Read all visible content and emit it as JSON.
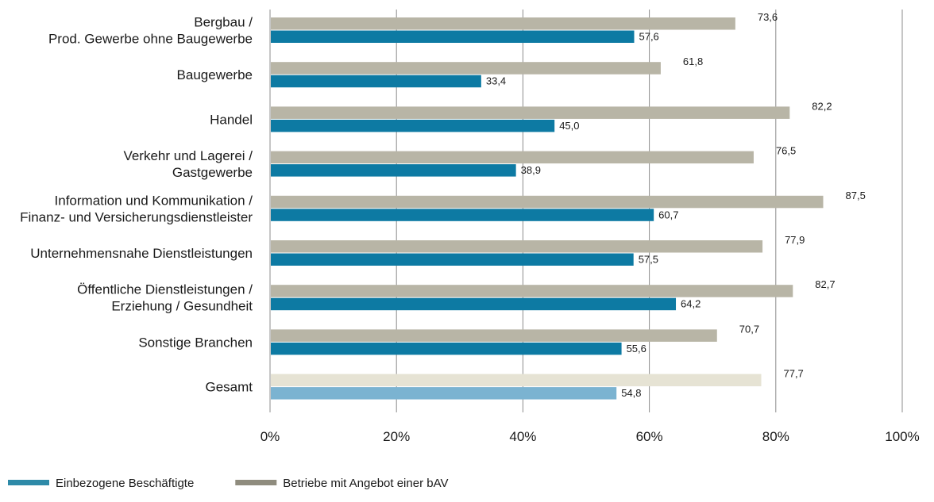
{
  "chart_data": {
    "type": "bar",
    "orientation": "horizontal",
    "categories": [
      [
        "Bergbau /",
        "Prod. Gewerbe ohne Baugewerbe"
      ],
      [
        "Baugewerbe"
      ],
      [
        "Handel"
      ],
      [
        "Verkehr und Lagerei /",
        "Gastgewerbe"
      ],
      [
        "Information und Kommunikation /",
        "Finanz- und Versicherungsdienstleister"
      ],
      [
        "Unternehmensnahe Dienstleistungen"
      ],
      [
        "Öffentliche Dienstleistungen /",
        "Erziehung / Gesundheit"
      ],
      [
        "Sonstige Branchen"
      ],
      [
        "Gesamt"
      ]
    ],
    "series": [
      {
        "name": "Betriebe mit Angebot einer bAV",
        "color": "#b8b5a6",
        "highlight_color": "#e6e3d4",
        "legend_color": "#8f8c7e",
        "values": [
          73.6,
          61.8,
          82.2,
          76.5,
          87.5,
          77.9,
          82.7,
          70.7,
          77.7
        ],
        "labels": [
          "73,6",
          "61,8",
          "82,2",
          "76,5",
          "87,5",
          "77,9",
          "82,7",
          "70,7",
          "77,7"
        ]
      },
      {
        "name": "Einbezogene Beschäftigte",
        "color": "#0d7aa3",
        "highlight_color": "#7bb3d1",
        "legend_color": "#2e8aa8",
        "values": [
          57.6,
          33.4,
          45.0,
          38.9,
          60.7,
          57.5,
          64.2,
          55.6,
          54.8
        ],
        "labels": [
          "57,6",
          "33,4",
          "45,0",
          "38,9",
          "60,7",
          "57,5",
          "64,2",
          "55,6",
          "54,8"
        ]
      }
    ],
    "highlight_category_index": 8,
    "x_ticks": [
      "0%",
      "20%",
      "40%",
      "60%",
      "80%",
      "100%"
    ],
    "xlim": [
      0,
      100
    ],
    "grid": true,
    "legend_position": "bottom-left",
    "legend_order": [
      1,
      0
    ]
  }
}
